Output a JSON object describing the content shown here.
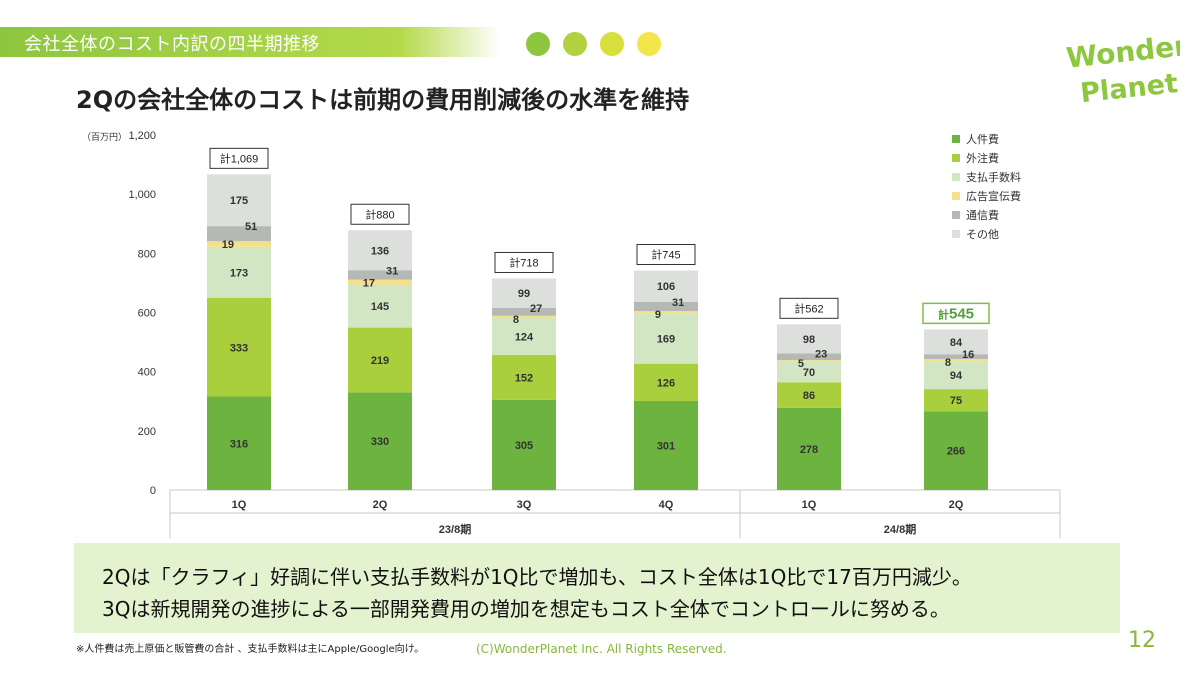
{
  "header": {
    "title": "会社全体のコスト内訳の四半期推移"
  },
  "dots": [
    "#8dc63f",
    "#b1d23e",
    "#d7df3c",
    "#f3e64a"
  ],
  "logo": {
    "line1": "Wonder",
    "line2": "Planet"
  },
  "headline": "2Qの会社全体のコストは前期の費用削減後の水準を維持",
  "chart_data": {
    "type": "bar",
    "stacked": true,
    "unit_label": "（百万円）",
    "ylim": [
      0,
      1200
    ],
    "yticks": [
      "0",
      "200",
      "400",
      "600",
      "800",
      "1,000",
      "1,200"
    ],
    "categories": [
      "1Q",
      "2Q",
      "3Q",
      "4Q",
      "1Q",
      "2Q"
    ],
    "groups": [
      {
        "label": "23/8期",
        "count": 4
      },
      {
        "label": "24/8期",
        "count": 2
      }
    ],
    "series": [
      {
        "name": "人件費",
        "color": "#6db33f",
        "values": [
          316,
          330,
          305,
          301,
          278,
          266
        ]
      },
      {
        "name": "外注費",
        "color": "#a9cf3c",
        "values": [
          333,
          219,
          152,
          126,
          86,
          75
        ]
      },
      {
        "name": "支払手数料",
        "color": "#d2e6c4",
        "values": [
          173,
          145,
          124,
          169,
          70,
          94
        ]
      },
      {
        "name": "広告宣伝費",
        "color": "#f5e08a",
        "values": [
          19,
          17,
          8,
          9,
          5,
          8
        ]
      },
      {
        "name": "通信費",
        "color": "#b5b9b5",
        "values": [
          51,
          31,
          27,
          31,
          23,
          16
        ]
      },
      {
        "name": "その他",
        "color": "#dcdfdc",
        "values": [
          175,
          136,
          99,
          106,
          98,
          84
        ]
      }
    ],
    "totals": [
      "計1,069",
      "計880",
      "計718",
      "計745",
      "計562",
      "計545"
    ],
    "totals_prefix": "計",
    "last_total_value": "545",
    "legend_position": "top-right"
  },
  "callout": {
    "line1": "2Qは「クラフィ」好調に伴い支払手数料が1Q比で増加も、コスト全体は1Q比で17百万円減少。",
    "line2": "3Qは新規開発の進捗による一部開発費用の増加を想定もコスト全体でコントロールに努める。"
  },
  "footnote": "※人件費は売上原価と販管費の合計 、支払手数料は主にApple/Google向け。",
  "copyright": "(C)WonderPlanet Inc.  All Rights Reserved.",
  "page_number": "12"
}
